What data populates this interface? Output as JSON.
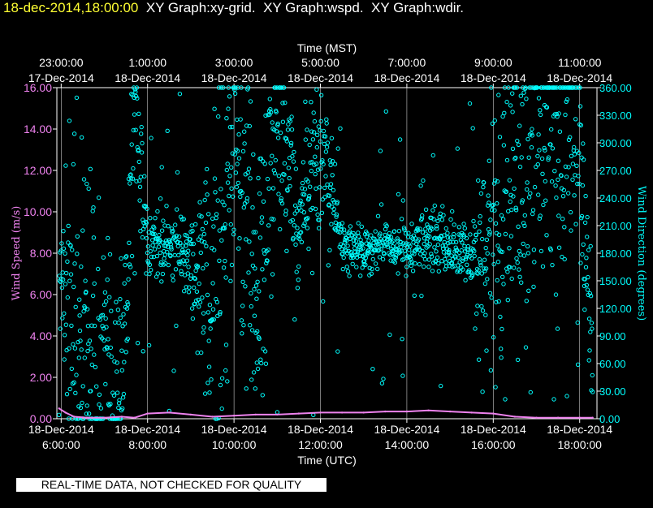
{
  "header": {
    "timestamp": "18-dec-2014,18:00:00",
    "titles": [
      "XY Graph:xy-grid.",
      "XY Graph:wspd.",
      "XY Graph:wdir."
    ]
  },
  "notice": "REAL-TIME DATA, NOT CHECKED FOR QUALITY",
  "colors": {
    "background": "#000000",
    "axes": "#ffffff",
    "timestamp": "#ffff33",
    "wind_speed": "#ee82ee",
    "wind_direction": "#00ffff"
  },
  "chart_data": {
    "type": "scatter",
    "grid": "vertical lines at each labeled hour",
    "top_axis": {
      "label": "Time (MST)",
      "ticks": [
        {
          "time": "23:00:00",
          "date": "17-Dec-2014"
        },
        {
          "time": "1:00:00",
          "date": "18-Dec-2014"
        },
        {
          "time": "3:00:00",
          "date": "18-Dec-2014"
        },
        {
          "time": "5:00:00",
          "date": "18-Dec-2014"
        },
        {
          "time": "7:00:00",
          "date": "18-Dec-2014"
        },
        {
          "time": "9:00:00",
          "date": "18-Dec-2014"
        },
        {
          "time": "11:00:00",
          "date": "18-Dec-2014"
        }
      ]
    },
    "bottom_axis": {
      "label": "Time (UTC)",
      "ticks": [
        {
          "time": "6:00:00",
          "date": "18-Dec-2014"
        },
        {
          "time": "8:00:00",
          "date": "18-Dec-2014"
        },
        {
          "time": "10:00:00",
          "date": "18-Dec-2014"
        },
        {
          "time": "12:00:00",
          "date": "18-Dec-2014"
        },
        {
          "time": "14:00:00",
          "date": "18-Dec-2014"
        },
        {
          "time": "16:00:00",
          "date": "18-Dec-2014"
        },
        {
          "time": "18:00:00",
          "date": "18-Dec-2014"
        }
      ],
      "xlim_hours_utc": [
        5.9,
        18.4
      ]
    },
    "left_axis": {
      "label": "Wind Speed (m/s)",
      "ylim": [
        0,
        16
      ],
      "tick_labels": [
        "0.00",
        "2.00",
        "4.00",
        "6.00",
        "8.00",
        "10.00",
        "12.00",
        "14.00",
        "16.00"
      ]
    },
    "right_axis": {
      "label": "Wind Direction (degrees)",
      "ylim": [
        0,
        360
      ],
      "tick_labels": [
        "0.00",
        "30.00",
        "60.00",
        "90.00",
        "120.00",
        "150.00",
        "180.00",
        "210.00",
        "240.00",
        "270.00",
        "300.00",
        "330.00",
        "360.00"
      ]
    },
    "series": [
      {
        "name": "wspd",
        "axis": "left",
        "marker": "line",
        "x_hours_utc": [
          5.95,
          6.1,
          6.3,
          6.6,
          7.0,
          7.4,
          7.7,
          8.0,
          8.5,
          9.0,
          9.5,
          10.0,
          10.5,
          11.0,
          11.5,
          12.0,
          12.5,
          13.0,
          13.5,
          14.0,
          14.5,
          15.0,
          15.5,
          16.0,
          16.5,
          17.0,
          17.5,
          18.0,
          18.3
        ],
        "values": [
          0.5,
          0.3,
          0.1,
          0.05,
          0.05,
          0.1,
          0.05,
          0.25,
          0.3,
          0.2,
          0.1,
          0.15,
          0.2,
          0.2,
          0.25,
          0.3,
          0.3,
          0.3,
          0.35,
          0.35,
          0.4,
          0.35,
          0.3,
          0.25,
          0.1,
          0.05,
          0.05,
          0.05,
          0.05
        ]
      },
      {
        "name": "wdir",
        "axis": "right",
        "marker": "circle",
        "x_hours_utc": [
          5.95,
          6.1,
          6.3,
          6.6,
          7.0,
          7.4,
          7.7,
          8.0,
          8.5,
          9.0,
          9.5,
          10.0,
          10.5,
          11.0,
          11.5,
          12.0,
          12.5,
          13.0,
          13.5,
          14.0,
          14.5,
          15.0,
          15.5,
          16.0,
          16.5,
          17.0,
          17.5,
          18.0,
          18.3
        ],
        "values": [
          160,
          150,
          60,
          90,
          60,
          30,
          350,
          180,
          190,
          175,
          120,
          300,
          120,
          330,
          210,
          300,
          190,
          180,
          195,
          180,
          200,
          185,
          175,
          190,
          240,
          320,
          330,
          300,
          60
        ],
        "spread": [
          40,
          160,
          200,
          180,
          160,
          120,
          120,
          35,
          40,
          40,
          200,
          170,
          180,
          150,
          60,
          100,
          25,
          30,
          30,
          25,
          35,
          35,
          40,
          180,
          170,
          180,
          170,
          160,
          80
        ]
      }
    ]
  }
}
